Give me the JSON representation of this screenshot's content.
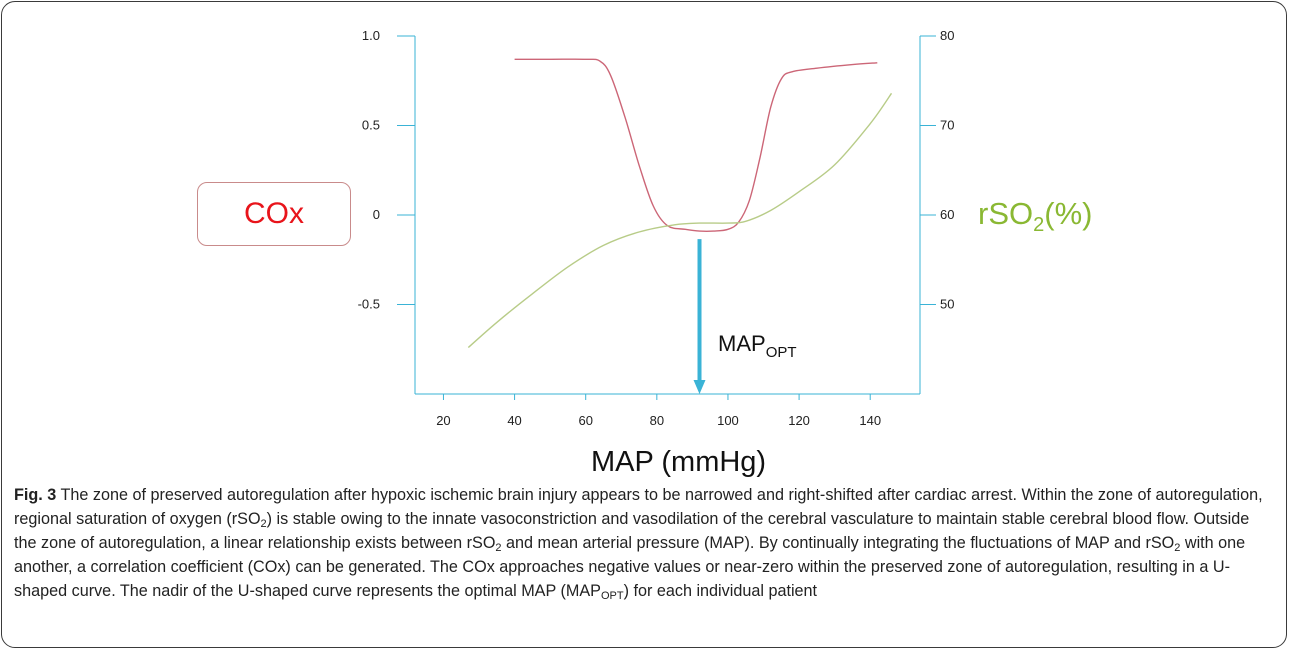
{
  "chart_data": {
    "type": "line",
    "xlabel": "MAP (mmHg)",
    "x_ticks": [
      20,
      40,
      60,
      80,
      100,
      120,
      140
    ],
    "xlim": [
      12,
      154
    ],
    "y_left": {
      "label": "COx",
      "ticks": [
        "1.0",
        "0.5",
        "0",
        "-0.5"
      ],
      "ylim": [
        -1.0,
        1.0
      ]
    },
    "y_right": {
      "label_main": "rSO",
      "label_sub": "2",
      "label_suffix": "(%)",
      "ticks": [
        "80",
        "70",
        "60",
        "50"
      ],
      "ylim": [
        40,
        80
      ]
    },
    "series": [
      {
        "axis": "left",
        "color": "#cc6677",
        "points": [
          [
            40,
            0.87
          ],
          [
            50,
            0.87
          ],
          [
            60,
            0.87
          ],
          [
            64,
            0.86
          ],
          [
            67,
            0.78
          ],
          [
            71,
            0.55
          ],
          [
            75,
            0.28
          ],
          [
            79,
            0.05
          ],
          [
            83,
            -0.06
          ],
          [
            88,
            -0.08
          ],
          [
            92,
            -0.09
          ],
          [
            96,
            -0.09
          ],
          [
            100,
            -0.08
          ],
          [
            103,
            -0.04
          ],
          [
            106,
            0.08
          ],
          [
            109,
            0.32
          ],
          [
            112,
            0.6
          ],
          [
            115,
            0.76
          ],
          [
            118,
            0.8
          ],
          [
            125,
            0.82
          ],
          [
            135,
            0.84
          ],
          [
            142,
            0.85
          ]
        ]
      },
      {
        "axis": "right",
        "color": "#b8cc88",
        "points": [
          [
            27,
            45.2
          ],
          [
            35,
            48
          ],
          [
            45,
            51.2
          ],
          [
            55,
            54.2
          ],
          [
            65,
            56.6
          ],
          [
            75,
            58.1
          ],
          [
            85,
            58.9
          ],
          [
            92,
            59.1
          ],
          [
            100,
            59.1
          ],
          [
            105,
            59.3
          ],
          [
            112,
            60.5
          ],
          [
            120,
            62.6
          ],
          [
            130,
            65.6
          ],
          [
            140,
            70.2
          ],
          [
            146,
            73.6
          ]
        ]
      }
    ],
    "marker": {
      "x": 92,
      "y_left": -0.09,
      "label_main": "MAP",
      "label_sub": "OPT",
      "color": "#3ab3d6"
    }
  },
  "caption": {
    "fig_label": "Fig. 3",
    "parts": [
      " The zone of preserved autoregulation after hypoxic ischemic brain injury appears to be narrowed and right-shifted after cardiac arrest. Within the zone of autoregulation, regional saturation of oxygen (rSO",
      "2",
      ") is stable owing to the innate vasoconstriction and vasodilation of the cerebral vasculature to maintain stable cerebral blood flow. Outside the zone of autoregulation, a linear relationship exists between rSO",
      "2",
      " and mean arterial pressure (MAP). By continually integrating the fluctuations of MAP and rSO",
      "2",
      " with one another, a correlation coefficient (COx) can be generated. The COx approaches negative values or near-zero within the preserved zone of autoregulation, resulting in a U-shaped curve. The nadir of the U-shaped curve represents the optimal MAP (MAP",
      "OPT",
      ") for each individual patient"
    ]
  }
}
